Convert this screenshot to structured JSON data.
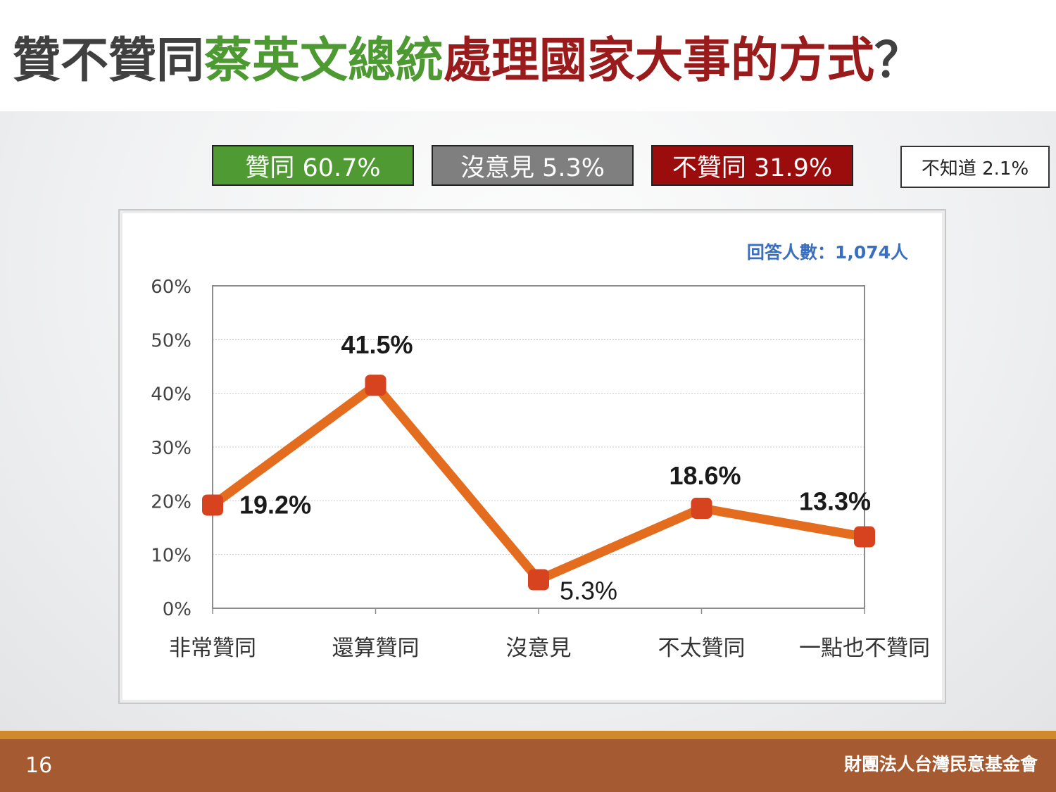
{
  "title": {
    "part1": "贊不贊同",
    "part2": "蔡英文總統",
    "part3": "處理國家大事的方式",
    "part4": "？"
  },
  "legend": {
    "approve": "贊同 60.7%",
    "neutral": "沒意見 5.3%",
    "disapprove": "不贊同 31.9%",
    "unknown": "不知道 2.1%"
  },
  "colors": {
    "approve": "#4f9a33",
    "neutral": "#7f7f7f",
    "disapprove": "#9b0d0d",
    "line": "#e46c1f",
    "marker": "#d8431f",
    "respondents": "#3a6fbf"
  },
  "chart_data": {
    "type": "line",
    "respondents_note": "回答人數：1,074人",
    "categories": [
      "非常贊同",
      "還算贊同",
      "沒意見",
      "不太贊同",
      "一點也不贊同"
    ],
    "values": [
      19.2,
      41.5,
      5.3,
      18.6,
      13.3
    ],
    "data_labels": [
      "19.2%",
      "41.5%",
      "5.3%",
      "18.6%",
      "13.3%"
    ],
    "y_ticks": [
      "0%",
      "10%",
      "20%",
      "30%",
      "40%",
      "50%",
      "60%"
    ],
    "ylim": [
      0,
      60
    ],
    "grid": true,
    "legend": "none"
  },
  "footer": {
    "page": "16",
    "org": "財團法人台灣民意基金會"
  }
}
